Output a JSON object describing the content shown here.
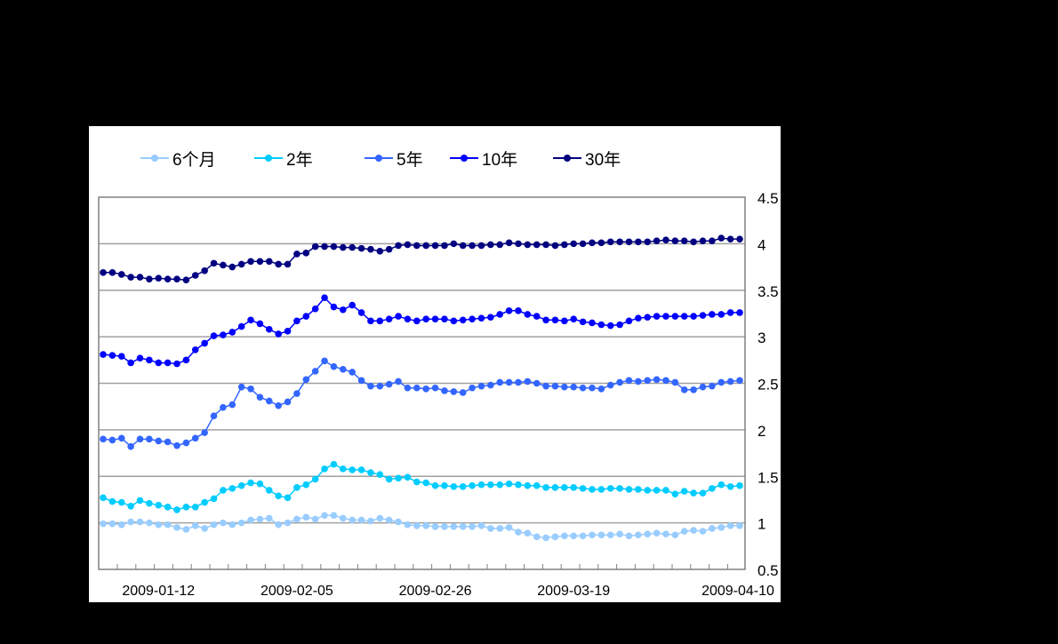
{
  "chart_data": {
    "type": "line",
    "title": "",
    "xlabel": "",
    "ylabel": "",
    "ylim": [
      0.5,
      4.5
    ],
    "yticks": [
      "4.5",
      "4",
      "3.5",
      "3",
      "2.5",
      "2",
      "1.5",
      "1",
      "0.5"
    ],
    "ytick_values": [
      4.5,
      4,
      3.5,
      3,
      2.5,
      2,
      1.5,
      1,
      0.5
    ],
    "y_axis_position": "right",
    "grid": "horizontal",
    "legend_position": "top",
    "x_tick_labels": [
      "2009-01-12",
      "2009-02-05",
      "2009-02-26",
      "2009-03-19",
      "2009-04-10"
    ],
    "x_tick_label_index": [
      6,
      21,
      36,
      51,
      69
    ],
    "num_points": 70,
    "series": [
      {
        "name": "6个月",
        "color": "#99CCFF",
        "values": [
          0.99,
          0.99,
          0.98,
          1.01,
          1.01,
          1.0,
          0.98,
          0.98,
          0.95,
          0.93,
          0.97,
          0.94,
          0.98,
          1.0,
          0.98,
          1.0,
          1.03,
          1.04,
          1.05,
          0.98,
          1.0,
          1.04,
          1.06,
          1.04,
          1.08,
          1.08,
          1.05,
          1.03,
          1.03,
          1.02,
          1.05,
          1.03,
          1.01,
          0.98,
          0.97,
          0.97,
          0.96,
          0.96,
          0.96,
          0.96,
          0.96,
          0.97,
          0.94,
          0.94,
          0.95,
          0.9,
          0.89,
          0.85,
          0.84,
          0.85,
          0.86,
          0.86,
          0.86,
          0.87,
          0.87,
          0.87,
          0.88,
          0.86,
          0.87,
          0.88,
          0.89,
          0.88,
          0.87,
          0.91,
          0.92,
          0.91,
          0.94,
          0.95,
          0.97,
          0.97
        ]
      },
      {
        "name": "2年",
        "color": "#00CCFF",
        "values": [
          1.27,
          1.23,
          1.22,
          1.18,
          1.24,
          1.21,
          1.19,
          1.17,
          1.14,
          1.17,
          1.17,
          1.22,
          1.26,
          1.35,
          1.37,
          1.4,
          1.43,
          1.42,
          1.35,
          1.29,
          1.27,
          1.38,
          1.41,
          1.47,
          1.58,
          1.63,
          1.58,
          1.57,
          1.57,
          1.54,
          1.52,
          1.47,
          1.48,
          1.49,
          1.44,
          1.43,
          1.4,
          1.4,
          1.39,
          1.39,
          1.4,
          1.41,
          1.41,
          1.41,
          1.42,
          1.41,
          1.4,
          1.4,
          1.38,
          1.38,
          1.38,
          1.38,
          1.37,
          1.36,
          1.36,
          1.37,
          1.37,
          1.36,
          1.36,
          1.35,
          1.35,
          1.35,
          1.31,
          1.34,
          1.32,
          1.32,
          1.37,
          1.41,
          1.39,
          1.4
        ]
      },
      {
        "name": "5年",
        "color": "#3366FF",
        "values": [
          1.9,
          1.89,
          1.91,
          1.82,
          1.9,
          1.9,
          1.88,
          1.87,
          1.83,
          1.86,
          1.91,
          1.97,
          2.15,
          2.24,
          2.27,
          2.46,
          2.44,
          2.35,
          2.31,
          2.26,
          2.3,
          2.39,
          2.54,
          2.63,
          2.74,
          2.68,
          2.65,
          2.62,
          2.53,
          2.47,
          2.47,
          2.49,
          2.52,
          2.45,
          2.45,
          2.44,
          2.45,
          2.42,
          2.41,
          2.4,
          2.45,
          2.47,
          2.48,
          2.51,
          2.51,
          2.51,
          2.52,
          2.5,
          2.47,
          2.47,
          2.46,
          2.46,
          2.45,
          2.45,
          2.44,
          2.48,
          2.51,
          2.53,
          2.52,
          2.53,
          2.54,
          2.53,
          2.51,
          2.43,
          2.43,
          2.46,
          2.47,
          2.51,
          2.52,
          2.53
        ]
      },
      {
        "name": "10年",
        "color": "#0000FF",
        "values": [
          2.81,
          2.8,
          2.79,
          2.72,
          2.77,
          2.75,
          2.72,
          2.72,
          2.71,
          2.75,
          2.86,
          2.93,
          3.01,
          3.02,
          3.05,
          3.11,
          3.18,
          3.14,
          3.08,
          3.03,
          3.06,
          3.17,
          3.22,
          3.3,
          3.42,
          3.32,
          3.29,
          3.34,
          3.26,
          3.17,
          3.17,
          3.19,
          3.22,
          3.19,
          3.17,
          3.19,
          3.19,
          3.19,
          3.17,
          3.18,
          3.19,
          3.2,
          3.21,
          3.24,
          3.28,
          3.28,
          3.24,
          3.22,
          3.18,
          3.18,
          3.17,
          3.19,
          3.16,
          3.15,
          3.13,
          3.12,
          3.13,
          3.17,
          3.2,
          3.21,
          3.22,
          3.22,
          3.22,
          3.22,
          3.22,
          3.23,
          3.24,
          3.24,
          3.26,
          3.26
        ]
      },
      {
        "name": "30年",
        "color": "#000080",
        "values": [
          3.69,
          3.69,
          3.67,
          3.64,
          3.64,
          3.62,
          3.63,
          3.62,
          3.62,
          3.61,
          3.66,
          3.71,
          3.79,
          3.77,
          3.75,
          3.78,
          3.81,
          3.81,
          3.81,
          3.78,
          3.78,
          3.89,
          3.9,
          3.97,
          3.97,
          3.97,
          3.96,
          3.96,
          3.95,
          3.94,
          3.92,
          3.94,
          3.98,
          3.99,
          3.98,
          3.98,
          3.98,
          3.98,
          4.0,
          3.98,
          3.98,
          3.98,
          3.99,
          3.99,
          4.01,
          4.0,
          3.99,
          3.99,
          3.99,
          3.98,
          3.99,
          4.0,
          4.0,
          4.01,
          4.01,
          4.02,
          4.02,
          4.02,
          4.02,
          4.02,
          4.03,
          4.04,
          4.03,
          4.03,
          4.02,
          4.03,
          4.03,
          4.06,
          4.05,
          4.05
        ]
      }
    ]
  },
  "legend": {
    "items": [
      {
        "label": "6个月",
        "color": "#99CCFF"
      },
      {
        "label": "2年",
        "color": "#00CCFF"
      },
      {
        "label": "5年",
        "color": "#3366FF"
      },
      {
        "label": "10年",
        "color": "#0000FF"
      },
      {
        "label": "30年",
        "color": "#000080"
      }
    ]
  }
}
